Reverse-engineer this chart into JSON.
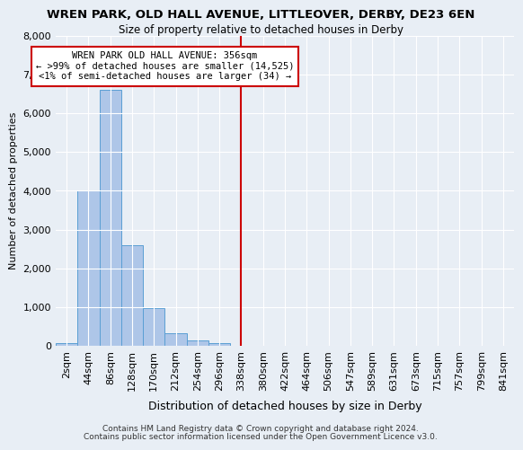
{
  "title": "WREN PARK, OLD HALL AVENUE, LITTLEOVER, DERBY, DE23 6EN",
  "subtitle": "Size of property relative to detached houses in Derby",
  "xlabel": "Distribution of detached houses by size in Derby",
  "ylabel": "Number of detached properties",
  "footnote1": "Contains HM Land Registry data © Crown copyright and database right 2024.",
  "footnote2": "Contains public sector information licensed under the Open Government Licence v3.0.",
  "bin_labels": [
    "2sqm",
    "44sqm",
    "86sqm",
    "128sqm",
    "170sqm",
    "212sqm",
    "254sqm",
    "296sqm",
    "338sqm",
    "380sqm",
    "422sqm",
    "464sqm",
    "506sqm",
    "547sqm",
    "589sqm",
    "631sqm",
    "673sqm",
    "715sqm",
    "757sqm",
    "799sqm",
    "841sqm"
  ],
  "bar_values": [
    70,
    4000,
    6600,
    2600,
    980,
    320,
    130,
    70,
    0,
    0,
    0,
    0,
    0,
    0,
    0,
    0,
    0,
    0,
    0,
    0,
    0
  ],
  "bar_color": "#aec6e8",
  "bar_edge_color": "#5a9fd4",
  "vline_x_index": 8.5,
  "vline_color": "#cc0000",
  "annotation_title": "WREN PARK OLD HALL AVENUE: 356sqm",
  "annotation_line1": "← >99% of detached houses are smaller (14,525)",
  "annotation_line2": "<1% of semi-detached houses are larger (34) →",
  "annotation_box_color": "#ffffff",
  "annotation_box_edge": "#cc0000",
  "ylim": [
    0,
    8000
  ],
  "yticks": [
    0,
    1000,
    2000,
    3000,
    4000,
    5000,
    6000,
    7000,
    8000
  ],
  "bg_color": "#e8eef5",
  "plot_bg_color": "#e8eef5"
}
